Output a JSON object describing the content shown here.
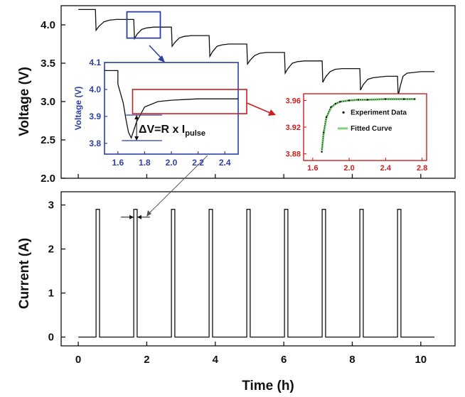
{
  "chart_data": [
    {
      "type": "line",
      "panel": "voltage",
      "ylabel": "Voltage (V)",
      "ylim": [
        2.0,
        4.25
      ],
      "xlim": [
        -0.5,
        11.0
      ],
      "yticks": [
        "2.0",
        "2.5",
        "3.0",
        "3.5",
        "4.0"
      ],
      "series": [
        {
          "x": [
            0.0,
            0.5,
            0.52,
            0.6,
            0.75,
            0.9,
            1.1,
            1.3,
            1.5,
            1.62,
            1.64,
            1.72,
            1.85,
            2.0,
            2.2,
            2.4,
            2.6,
            2.72,
            2.74,
            2.82,
            2.95,
            3.1,
            3.3,
            3.5,
            3.7,
            3.82,
            3.84,
            3.92,
            4.05,
            4.2,
            4.4,
            4.6,
            4.8,
            4.92,
            4.94,
            5.02,
            5.15,
            5.3,
            5.5,
            5.7,
            5.9,
            6.02,
            6.04,
            6.12,
            6.25,
            6.4,
            6.6,
            6.8,
            7.0,
            7.12,
            7.14,
            7.22,
            7.35,
            7.5,
            7.7,
            7.9,
            8.1,
            8.22,
            8.24,
            8.32,
            8.45,
            8.6,
            8.8,
            9.0,
            9.2,
            9.32,
            9.34,
            9.4,
            9.48,
            9.6,
            9.8,
            10.0,
            10.4
          ],
          "y": [
            4.2,
            4.2,
            3.93,
            3.98,
            4.04,
            4.06,
            4.07,
            4.07,
            4.07,
            4.07,
            3.82,
            3.88,
            3.94,
            3.96,
            3.97,
            3.97,
            3.97,
            3.97,
            3.72,
            3.77,
            3.83,
            3.85,
            3.86,
            3.86,
            3.86,
            3.86,
            3.59,
            3.65,
            3.72,
            3.74,
            3.75,
            3.75,
            3.75,
            3.75,
            3.49,
            3.54,
            3.6,
            3.63,
            3.64,
            3.64,
            3.64,
            3.64,
            3.37,
            3.43,
            3.5,
            3.52,
            3.53,
            3.53,
            3.53,
            3.53,
            3.25,
            3.32,
            3.39,
            3.42,
            3.43,
            3.43,
            3.43,
            3.43,
            3.15,
            3.22,
            3.29,
            3.31,
            3.32,
            3.33,
            3.33,
            3.33,
            3.07,
            3.2,
            3.33,
            3.37,
            3.38,
            3.39,
            3.39
          ]
        }
      ]
    },
    {
      "type": "line",
      "panel": "current",
      "xlabel": "Time (h)",
      "ylabel": "Current (A)",
      "xlim": [
        -0.5,
        11.0
      ],
      "ylim": [
        -0.2,
        3.3
      ],
      "xticks": [
        "0",
        "2",
        "4",
        "6",
        "8",
        "10"
      ],
      "yticks": [
        "0",
        "1",
        "2",
        "3"
      ],
      "pulse": {
        "amplitude": 2.9,
        "width": 0.1,
        "starts": [
          0.52,
          1.62,
          2.72,
          3.82,
          4.92,
          6.02,
          7.12,
          8.22,
          9.32
        ],
        "end": 10.4
      }
    },
    {
      "type": "line",
      "panel": "inset-zoom",
      "xlim": [
        1.5,
        2.5
      ],
      "ylim": [
        3.76,
        4.1
      ],
      "xticks": [
        "1.6",
        "1.8",
        "2.0",
        "2.2",
        "2.4"
      ],
      "yticks": [
        "3.8",
        "3.9",
        "4.0",
        "4.1"
      ],
      "ylabel": "Voltage (V)",
      "series": [
        {
          "x": [
            1.5,
            1.6,
            1.6,
            1.64,
            1.66,
            1.68,
            1.7,
            1.74,
            1.8,
            1.9,
            2.0,
            2.2,
            2.5
          ],
          "y": [
            4.07,
            4.07,
            4.02,
            3.95,
            3.89,
            3.84,
            3.82,
            3.88,
            3.935,
            3.955,
            3.96,
            3.965,
            3.965
          ]
        }
      ],
      "annotation": {
        "text": "ΔV=R x I",
        "subscript": "pulse"
      }
    },
    {
      "type": "line",
      "panel": "inset-fit",
      "xlim": [
        1.5,
        2.85
      ],
      "ylim": [
        3.87,
        3.97
      ],
      "xticks": [
        "1.6",
        "2.0",
        "2.4",
        "2.8"
      ],
      "yticks": [
        "3.88",
        "3.92",
        "3.96"
      ],
      "series": [
        {
          "name": "Experiment Data",
          "x": [
            1.7,
            1.72,
            1.75,
            1.8,
            1.85,
            1.9,
            2.0,
            2.1,
            2.2,
            2.4,
            2.6,
            2.72
          ],
          "y": [
            3.883,
            3.912,
            3.935,
            3.95,
            3.955,
            3.958,
            3.96,
            3.961,
            3.961,
            3.962,
            3.962,
            3.962
          ]
        },
        {
          "name": "Fitted Curve",
          "x": [
            1.7,
            1.72,
            1.75,
            1.8,
            1.85,
            1.9,
            2.0,
            2.1,
            2.2,
            2.4,
            2.6,
            2.72
          ],
          "y": [
            3.885,
            3.911,
            3.934,
            3.949,
            3.955,
            3.958,
            3.96,
            3.961,
            3.961,
            3.962,
            3.962,
            3.962
          ]
        }
      ],
      "legend": "right",
      "colors": {
        "frame": "#cc1f1f",
        "data": "#0b0b0b",
        "fit": "#7ed37e"
      }
    }
  ],
  "colors": {
    "blue": "#2c3fa6",
    "red": "#cc1f1f",
    "ink": "#111111"
  }
}
